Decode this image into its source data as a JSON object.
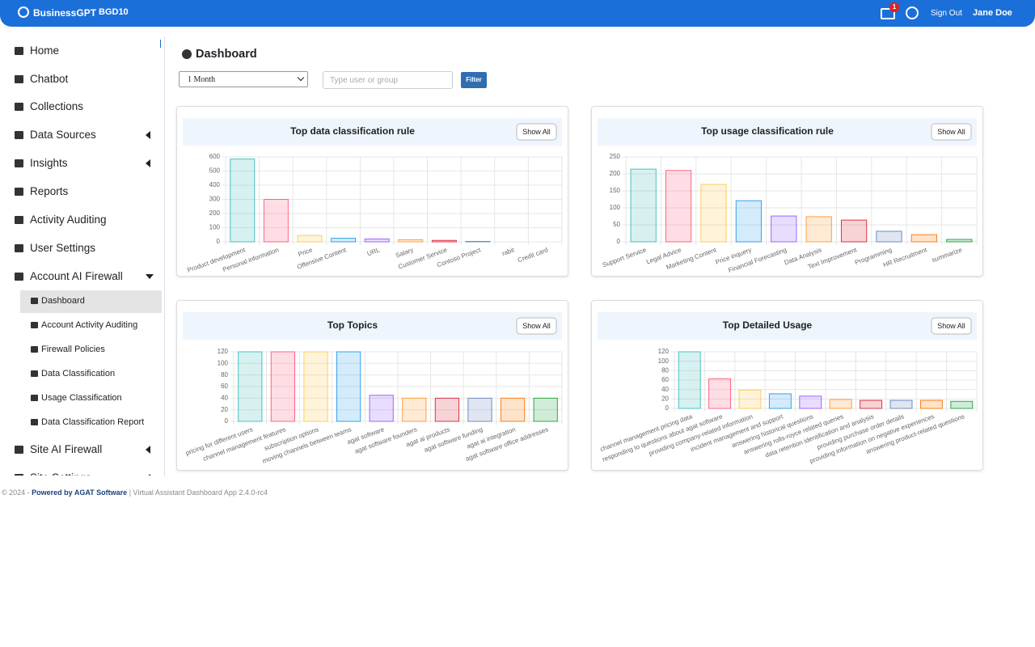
{
  "header": {
    "brand": "BusinessGPT",
    "tenant": "BGD10",
    "notifications": "1",
    "sign_out": "Sign Out",
    "user": "Jane Doe"
  },
  "sidebar": {
    "menu": [
      "Home",
      "Chatbot",
      "Collections",
      "Data Sources",
      "Insights",
      "Reports",
      "Activity Auditing",
      "User Settings",
      "Account AI Firewall"
    ],
    "submenu": [
      "Dashboard",
      "Account Activity Auditing",
      "Firewall Policies",
      "Data Classification",
      "Usage Classification",
      "Data Classification Report"
    ],
    "menu_after": [
      "Site AI Firewall",
      "Site Settings"
    ]
  },
  "page": {
    "title": "Dashboard",
    "period": "1 Month",
    "search_placeholder": "Type user or group",
    "filter": "Filter"
  },
  "footer": {
    "copyright": "© 2024 - ",
    "powered": "Powered by AGAT Software",
    "version": " | Virtual Assistant Dashboard App 2.4.0-rc4"
  },
  "chart_data": [
    {
      "type": "bar",
      "title": "Top data classification rule",
      "button": "Show All",
      "categories": [
        "Product development",
        "Personal information",
        "Price",
        "Offensive Content",
        "URL",
        "Salary",
        "Customer Service",
        "Contoso Project",
        "rabit",
        "Credit card"
      ],
      "values": [
        585,
        300,
        45,
        25,
        20,
        15,
        10,
        3,
        0,
        0
      ],
      "ylim": [
        0,
        600
      ],
      "yticks": [
        0,
        100,
        200,
        300,
        400,
        500,
        600
      ],
      "grid": true,
      "colors": [
        "#4bc0c0",
        "#ff6384",
        "#ffcd56",
        "#36a2eb",
        "#9966ff",
        "#ff9f40",
        "#dc3545",
        "#6c8ebf",
        "#fd7e14",
        "#28a745"
      ]
    },
    {
      "type": "bar",
      "title": "Top usage classification rule",
      "button": "Show All",
      "categories": [
        "Support Service",
        "Legal Advice",
        "Marketing Content",
        "Price inquery",
        "Financial Forecasting",
        "Data Analysis",
        "Text Improvement",
        "Programming",
        "HR Recruitment",
        "summarize"
      ],
      "values": [
        214,
        210,
        169,
        121,
        76,
        74,
        64,
        31,
        21,
        7
      ],
      "ylim": [
        0,
        250
      ],
      "yticks": [
        0,
        50,
        100,
        150,
        200,
        250
      ],
      "grid": true,
      "colors": [
        "#4bc0c0",
        "#ff6384",
        "#ffcd56",
        "#36a2eb",
        "#9966ff",
        "#ff9f40",
        "#dc3545",
        "#6c8ebf",
        "#fd7e14",
        "#28a745"
      ]
    },
    {
      "type": "bar",
      "title": "Top Topics",
      "button": "Show All",
      "categories": [
        "pricing for different users",
        "channel management features",
        "subscription options",
        "moving channels between teams",
        "agat software",
        "agat software founders",
        "agat ai products",
        "agat software funding",
        "agat ai integration",
        "agat software office addresses"
      ],
      "values": [
        120,
        120,
        120,
        120,
        45,
        40,
        40,
        40,
        40,
        40
      ],
      "ylim": [
        0,
        120
      ],
      "yticks": [
        0,
        20,
        40,
        60,
        80,
        100,
        120
      ],
      "grid": true,
      "colors": [
        "#4bc0c0",
        "#ff6384",
        "#ffcd56",
        "#36a2eb",
        "#9966ff",
        "#ff9f40",
        "#dc3545",
        "#6c8ebf",
        "#fd7e14",
        "#28a745"
      ]
    },
    {
      "type": "bar",
      "title": "Top Detailed Usage",
      "button": "Show All",
      "categories": [
        "channel management pricing data",
        "responding to questions about agat software",
        "providing company-related information",
        "incident management and support",
        "answering historical questions",
        "answering rolls-royce related queries",
        "data retention identification and analysis",
        "providing purchase order details",
        "providing information on negative experiences",
        "answering product-related questions"
      ],
      "values": [
        120,
        63,
        39,
        31,
        26,
        19,
        17,
        17,
        17,
        15
      ],
      "ylim": [
        0,
        120
      ],
      "yticks": [
        0,
        20,
        40,
        60,
        80,
        100,
        120
      ],
      "grid": true,
      "colors": [
        "#4bc0c0",
        "#ff6384",
        "#ffcd56",
        "#36a2eb",
        "#9966ff",
        "#ff9f40",
        "#dc3545",
        "#6c8ebf",
        "#fd7e14",
        "#28a745"
      ]
    }
  ]
}
